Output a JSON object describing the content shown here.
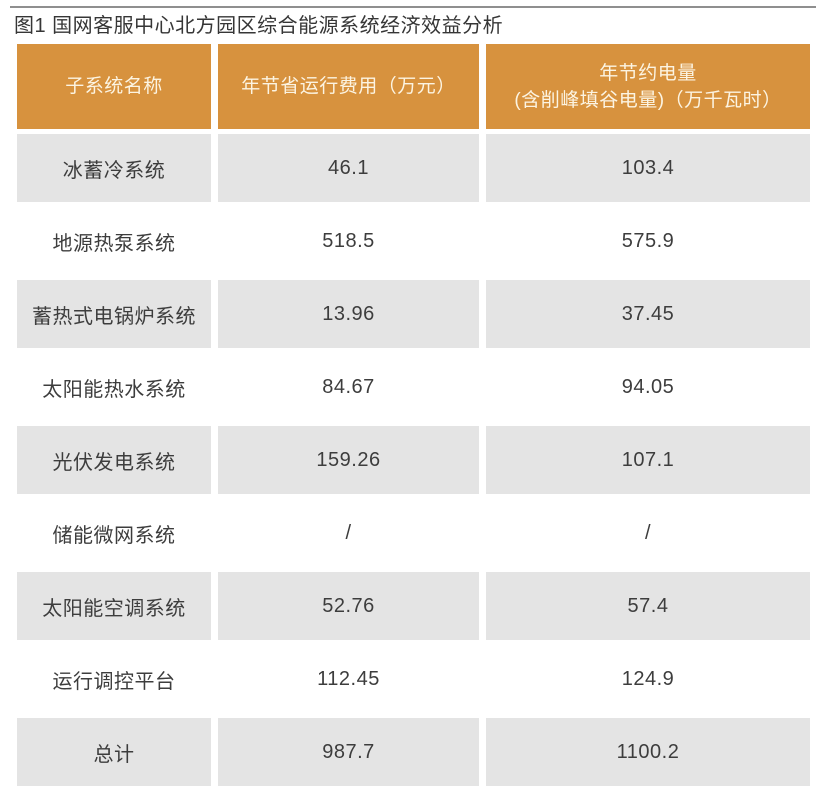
{
  "page": {
    "title": "图1 国网客服中心北方园区综合能源系统经济效益分析"
  },
  "colors": {
    "header_background": "#D7923E",
    "header_text": "#FCF4E2",
    "row_gray": "#E4E4E4",
    "row_white": "#FFFFFF",
    "body_text": "#3D3D3D",
    "top_rule": "#8F8F8F"
  },
  "table": {
    "headers": {
      "col1": "子系统名称",
      "col2": "年节省运行费用（万元）",
      "col3_line1": "年节约电量",
      "col3_line2": "(含削峰填谷电量)（万千瓦时）"
    },
    "rows": [
      {
        "name": "冰蓄冷系统",
        "cost": "46.1",
        "power": "103.4"
      },
      {
        "name": "地源热泵系统",
        "cost": "518.5",
        "power": "575.9"
      },
      {
        "name": "蓄热式电锅炉系统",
        "cost": "13.96",
        "power": "37.45"
      },
      {
        "name": "太阳能热水系统",
        "cost": "84.67",
        "power": "94.05"
      },
      {
        "name": "光伏发电系统",
        "cost": "159.26",
        "power": "107.1"
      },
      {
        "name": "储能微网系统",
        "cost": "/",
        "power": "/"
      },
      {
        "name": "太阳能空调系统",
        "cost": "52.76",
        "power": "57.4"
      },
      {
        "name": "运行调控平台",
        "cost": "112.45",
        "power": "124.9"
      },
      {
        "name": "总计",
        "cost": "987.7",
        "power": "1100.2"
      }
    ]
  },
  "chart_data": {
    "type": "table",
    "title": "图1 国网客服中心北方园区综合能源系统经济效益分析",
    "columns": [
      "子系统名称",
      "年节省运行费用（万元）",
      "年节约电量(含削峰填谷电量)（万千瓦时）"
    ],
    "categories": [
      "冰蓄冷系统",
      "地源热泵系统",
      "蓄热式电锅炉系统",
      "太阳能热水系统",
      "光伏发电系统",
      "储能微网系统",
      "太阳能空调系统",
      "运行调控平台",
      "总计"
    ],
    "series": [
      {
        "name": "年节省运行费用（万元）",
        "values": [
          46.1,
          518.5,
          13.96,
          84.67,
          159.26,
          null,
          52.76,
          112.45,
          987.7
        ]
      },
      {
        "name": "年节约电量(含削峰填谷电量)（万千瓦时）",
        "values": [
          103.4,
          575.9,
          37.45,
          94.05,
          107.1,
          null,
          57.4,
          124.9,
          1100.2
        ]
      }
    ],
    "layout_hints": {
      "header_style": "orange background, light text",
      "row_striping": "odd rows gray, even rows white",
      "alignment": "all cells centered"
    }
  }
}
